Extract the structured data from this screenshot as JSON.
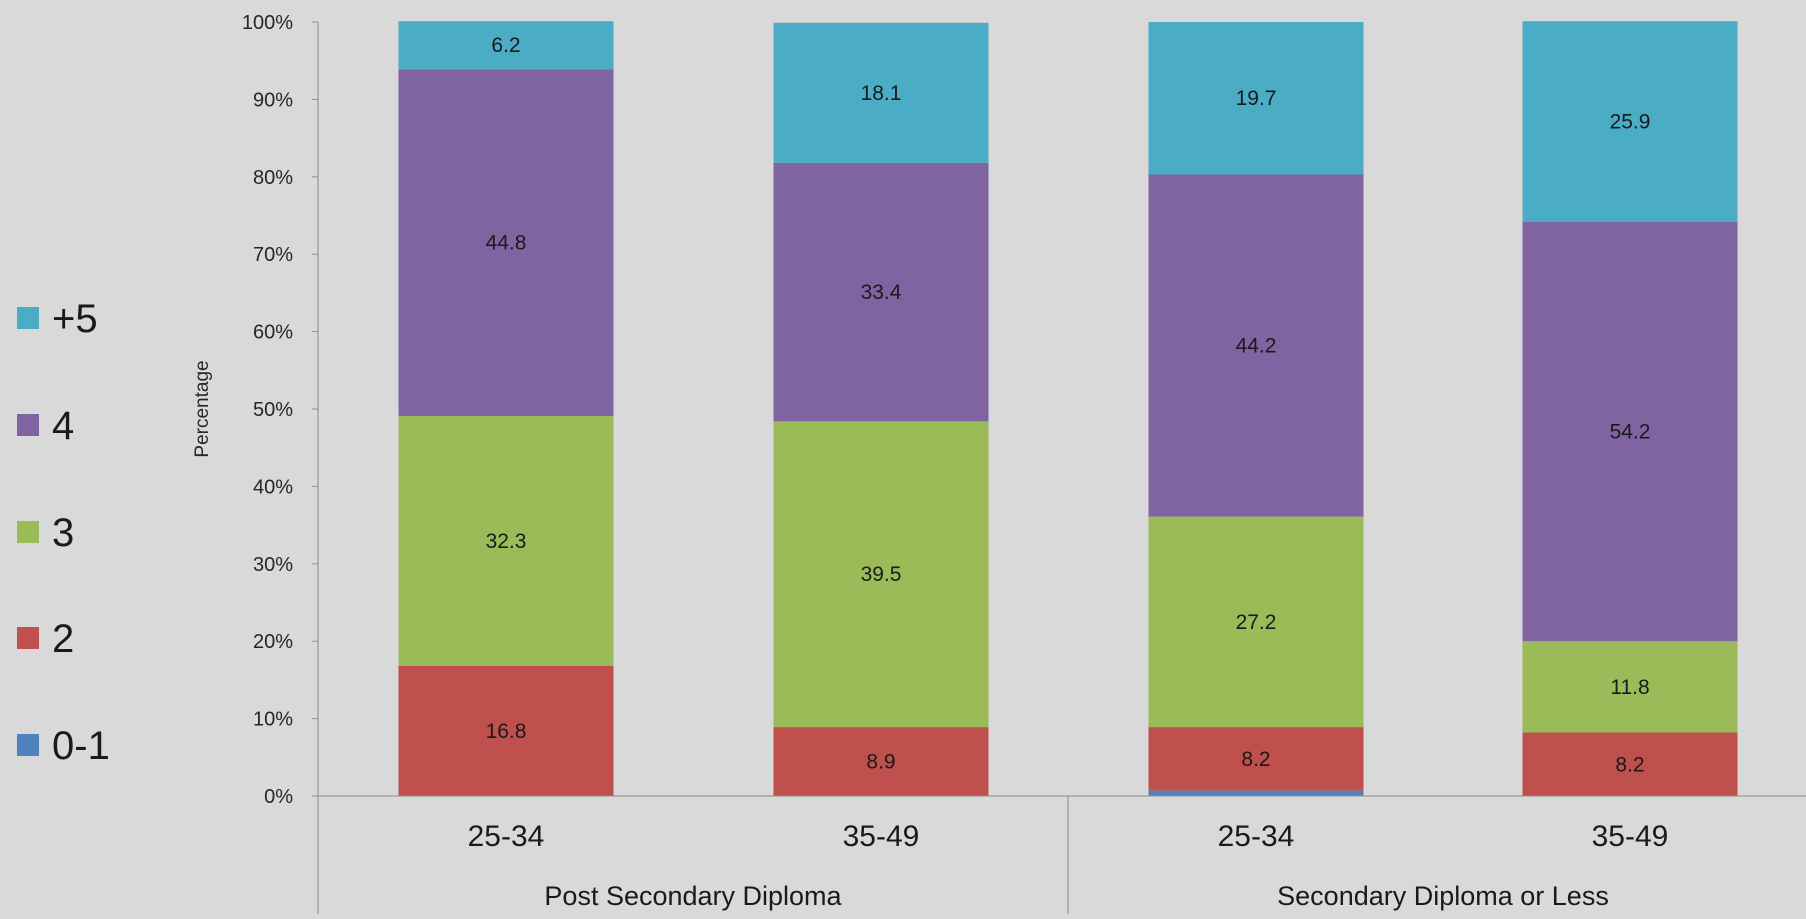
{
  "chart_data": {
    "type": "bar",
    "stacked": true,
    "ylabel": "Percentage",
    "xlabel": "",
    "ylim": [
      0,
      100
    ],
    "y_ticks": [
      "0%",
      "10%",
      "20%",
      "30%",
      "40%",
      "50%",
      "60%",
      "70%",
      "80%",
      "90%",
      "100%"
    ],
    "grid": false,
    "legend_position": "left",
    "groups": [
      {
        "name": "Post Secondary Diploma",
        "categories": [
          "25-34",
          "35-49"
        ]
      },
      {
        "name": "Secondary Diploma or Less",
        "categories": [
          "25-34",
          "35-49"
        ]
      }
    ],
    "categories": [
      "25-34",
      "35-49",
      "25-34",
      "35-49"
    ],
    "series": [
      {
        "name": "0-1",
        "color": "#4f81bd",
        "values": [
          0,
          0,
          0.7,
          0
        ],
        "labels": [
          "",
          "",
          "",
          ""
        ]
      },
      {
        "name": "2",
        "color": "#c0504d",
        "values": [
          16.8,
          8.9,
          8.2,
          8.2
        ],
        "labels": [
          "16.8",
          "8.9",
          "8.2",
          "8.2"
        ]
      },
      {
        "name": "3",
        "color": "#9bbb59",
        "values": [
          32.3,
          39.5,
          27.2,
          11.8
        ],
        "labels": [
          "32.3",
          "39.5",
          "27.2",
          "11.8"
        ]
      },
      {
        "name": "4",
        "color": "#8064a2",
        "values": [
          44.8,
          33.4,
          44.2,
          54.2
        ],
        "labels": [
          "44.8",
          "33.4",
          "44.2",
          "54.2"
        ]
      },
      {
        "name": "+5",
        "color": "#4bacc6",
        "values": [
          6.2,
          18.1,
          19.7,
          25.9
        ],
        "labels": [
          "6.2",
          "18.1",
          "19.7",
          "25.9"
        ]
      }
    ],
    "legend_order": [
      "+5",
      "4",
      "3",
      "2",
      "0-1"
    ]
  }
}
